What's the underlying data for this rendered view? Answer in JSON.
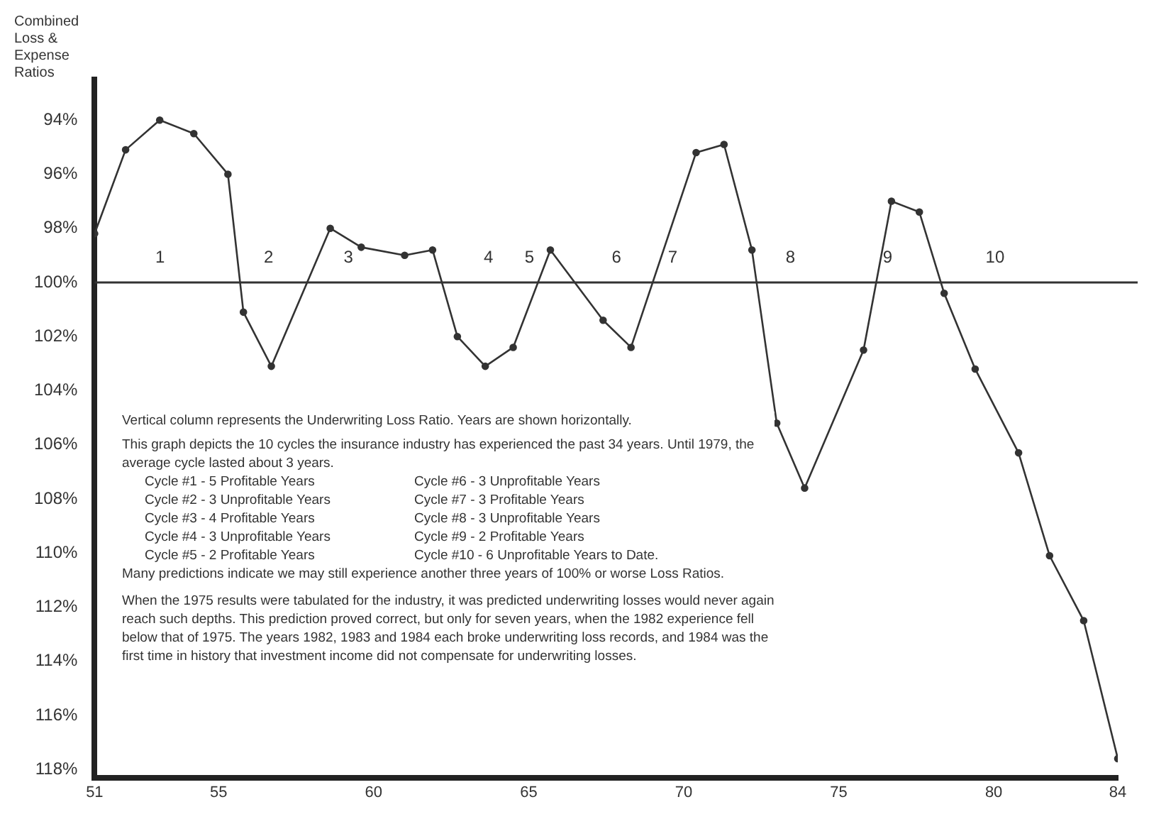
{
  "chart_data": {
    "type": "line",
    "ylabel": "Combined Loss & Expense Ratios",
    "x": [
      51,
      52,
      53.1,
      54.2,
      55.3,
      55.8,
      56.7,
      58.6,
      59.6,
      61,
      61.9,
      62.7,
      63.6,
      64.5,
      65.7,
      67.4,
      68.3,
      70.4,
      71.3,
      72.2,
      73,
      73.9,
      75.8,
      76.7,
      77.6,
      78.4,
      79.4,
      80.8,
      81.8,
      82.9,
      84
    ],
    "series": [
      {
        "color": "#333333",
        "values": [
          98.2,
          95.1,
          94,
          94.5,
          96,
          101.1,
          103.1,
          98,
          98.7,
          99,
          98.8,
          102,
          103.1,
          102.4,
          98.8,
          101.4,
          102.4,
          95.2,
          94.9,
          98.8,
          105.2,
          107.6,
          102.5,
          97,
          97.4,
          100.4,
          103.2,
          106.3,
          110.1,
          112.5,
          117.6
        ]
      }
    ],
    "xlim": [
      51,
      84
    ],
    "xticks": [
      51,
      55,
      60,
      65,
      70,
      75,
      80,
      84
    ],
    "ylim": [
      118.3,
      92.5
    ],
    "yticks": [
      {
        "value": 94,
        "label": "94%"
      },
      {
        "value": 96,
        "label": "96%"
      },
      {
        "value": 98,
        "label": "98%"
      },
      {
        "value": 100,
        "label": "100%"
      },
      {
        "value": 102,
        "label": "102%"
      },
      {
        "value": 104,
        "label": "104%"
      },
      {
        "value": 106,
        "label": "106%"
      },
      {
        "value": 108,
        "label": "108%"
      },
      {
        "value": 110,
        "label": "110%"
      },
      {
        "value": 112,
        "label": "112%"
      },
      {
        "value": 114,
        "label": "114%"
      },
      {
        "value": 116,
        "label": "116%"
      },
      {
        "value": 118,
        "label": "118%"
      }
    ],
    "ref_lines": [
      {
        "axis": "y",
        "value": 100,
        "color": "#333333"
      }
    ],
    "grid": false,
    "legend": false,
    "marker": "circle",
    "line_style": "solid",
    "annotations": [
      "1",
      "2",
      "3",
      "4",
      "5",
      "6",
      "7",
      "8",
      "9",
      "10",
      "Vertical column represents the Underwriting Loss Ratio. Years are shown horizontally.",
      "This graph depicts the 10 cycles the insurance industry has experienced the past 34 years. Until 1979, the average cycle lasted about 3 years.",
      "Cycle #1 - 5 Profitable Years",
      "Cycle #2 - 3 Unprofitable Years",
      "Cycle #3 - 4 Profitable Years",
      "Cycle #4 - 3 Unprofitable Years",
      "Cycle #5 - 2 Profitable Years",
      "Cycle #6 - 3 Unprofitable Years",
      "Cycle #7 - 3 Profitable Years",
      "Cycle #8 - 3 Unprofitable Years",
      "Cycle #9 - 2 Profitable Years",
      "Cycle #10 - 6 Unprofitable Years to Date.",
      "Many predictions indicate we may still experience another three years of 100% or worse Loss Ratios.",
      "When the 1975 results were tabulated for the industry, it was predicted underwriting losses would never again reach such depths. This prediction proved correct, but only for seven years, when the 1982 experience fell below that of 1975. The years 1982, 1983 and 1984 each broke underwriting loss records, and 1984 was the first time in history that investment income did not compensate for underwriting losses."
    ]
  }
}
